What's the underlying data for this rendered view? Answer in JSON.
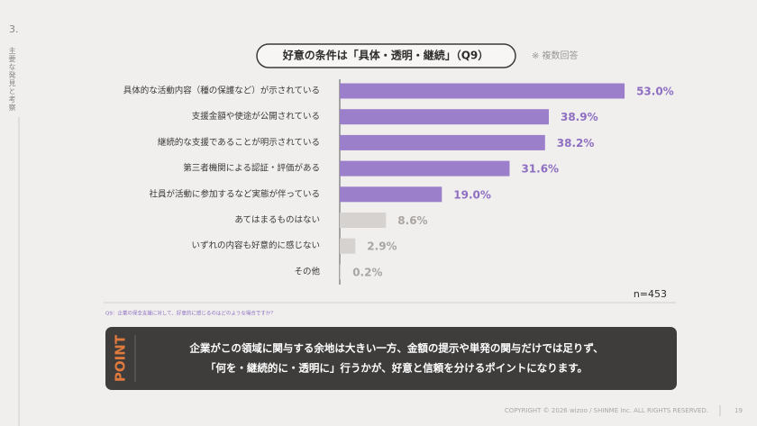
{
  "header": {
    "section": "3.",
    "section_title": "主要な発見と考察"
  },
  "chart_data": {
    "type": "bar",
    "orientation": "horizontal",
    "title": "好意の条件は「具体・透明・継続」（Q9）",
    "note": "※ 複数回答",
    "categories": [
      "具体的な活動内容（種の保護など）が示されている",
      "支援金額や使途が公開されている",
      "継続的な支援であることが明示されている",
      "第三者機関による認証・評価がある",
      "社員が活動に参加するなど実態が伴っている",
      "あてはまるものはない",
      "いずれの内容も好意的に感じない",
      "その他"
    ],
    "values": [
      53.0,
      38.9,
      38.2,
      31.6,
      19.0,
      8.6,
      2.9,
      0.2
    ],
    "value_labels": [
      "53.0%",
      "38.9%",
      "38.2%",
      "31.6%",
      "19.0%",
      "8.6%",
      "2.9%",
      "0.2%"
    ],
    "colors": [
      "#9b7fca",
      "#9b7fca",
      "#9b7fca",
      "#9b7fca",
      "#9b7fca",
      "#d6d2cf",
      "#d6d2cf",
      "#d6d2cf"
    ],
    "label_colors": [
      "#8e6fc2",
      "#8e6fc2",
      "#8e6fc2",
      "#8e6fc2",
      "#8e6fc2",
      "#a9a5a2",
      "#a9a5a2",
      "#a9a5a2"
    ],
    "xlim": [
      0,
      55
    ],
    "sample": "n=453"
  },
  "footnote": "Q9：企業の保全支援に対して、好意的に感じるのはどのような場合ですか？",
  "point": {
    "label": "POINT",
    "lines": [
      "企業がこの領域に関与する余地は大きい一方、金額の提示や単発の関与だけでは足りず、",
      "「何を・継続的に・透明に」行うかが、好意と信頼を分けるポイントになります。"
    ]
  },
  "footer": {
    "copyright": "COPYRIGHT © 2026 wizoo / SHINME Inc. ALL RIGHTS RESERVED.",
    "page": "19"
  }
}
